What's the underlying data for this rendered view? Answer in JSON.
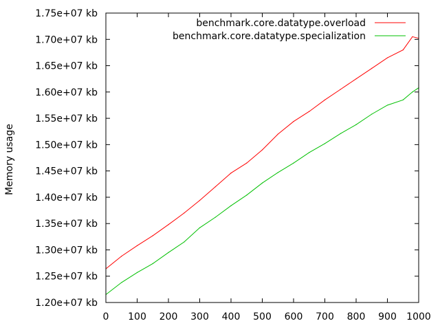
{
  "chart_data": {
    "type": "line",
    "title": "",
    "xlabel": "",
    "ylabel": "Memory usage",
    "xlim": [
      0,
      1000
    ],
    "ylim": [
      12000000,
      17500000
    ],
    "x_ticks": [
      {
        "value": 0,
        "label": "0"
      },
      {
        "value": 100,
        "label": "100"
      },
      {
        "value": 200,
        "label": "200"
      },
      {
        "value": 300,
        "label": "300"
      },
      {
        "value": 400,
        "label": "400"
      },
      {
        "value": 500,
        "label": "500"
      },
      {
        "value": 600,
        "label": "600"
      },
      {
        "value": 700,
        "label": "700"
      },
      {
        "value": 800,
        "label": "800"
      },
      {
        "value": 900,
        "label": "900"
      },
      {
        "value": 1000,
        "label": "1000"
      }
    ],
    "y_ticks": [
      {
        "value": 12000000,
        "label": "1.20e+07 kb"
      },
      {
        "value": 12500000,
        "label": "1.25e+07 kb"
      },
      {
        "value": 13000000,
        "label": "1.30e+07 kb"
      },
      {
        "value": 13500000,
        "label": "1.35e+07 kb"
      },
      {
        "value": 14000000,
        "label": "1.40e+07 kb"
      },
      {
        "value": 14500000,
        "label": "1.45e+07 kb"
      },
      {
        "value": 15000000,
        "label": "1.50e+07 kb"
      },
      {
        "value": 15500000,
        "label": "1.55e+07 kb"
      },
      {
        "value": 16000000,
        "label": "1.60e+07 kb"
      },
      {
        "value": 16500000,
        "label": "1.65e+07 kb"
      },
      {
        "value": 17000000,
        "label": "1.70e+07 kb"
      },
      {
        "value": 17500000,
        "label": "1.75e+07 kb"
      }
    ],
    "grid": false,
    "legend_position": "top-right",
    "x": [
      0,
      50,
      100,
      150,
      200,
      250,
      300,
      350,
      400,
      450,
      500,
      550,
      600,
      650,
      700,
      750,
      800,
      850,
      900,
      950,
      980,
      1000
    ],
    "series": [
      {
        "name": "benchmark.core.datatype.overload",
        "color": "#ff0000",
        "values": [
          12640000,
          12880000,
          13080000,
          13270000,
          13480000,
          13700000,
          13940000,
          14200000,
          14460000,
          14650000,
          14900000,
          15200000,
          15440000,
          15630000,
          15850000,
          16050000,
          16250000,
          16450000,
          16650000,
          16800000,
          17050000,
          17020000
        ]
      },
      {
        "name": "benchmark.core.datatype.specialization",
        "color": "#00c000",
        "values": [
          12150000,
          12380000,
          12570000,
          12740000,
          12950000,
          13150000,
          13420000,
          13620000,
          13840000,
          14040000,
          14270000,
          14470000,
          14650000,
          14850000,
          15020000,
          15210000,
          15380000,
          15580000,
          15750000,
          15850000,
          16000000,
          16080000
        ]
      }
    ]
  }
}
